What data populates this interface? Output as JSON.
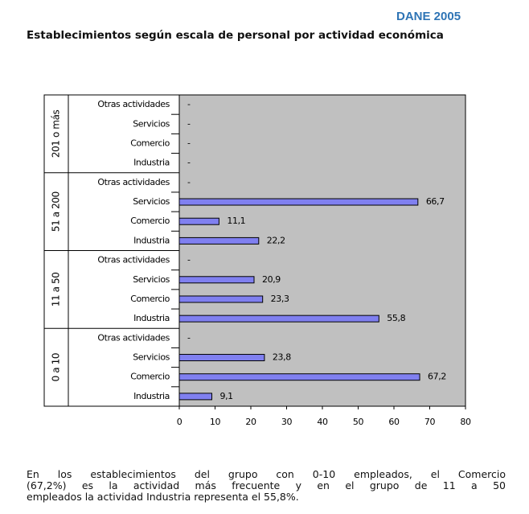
{
  "source": "DANE 2005",
  "chart_data": {
    "type": "bar",
    "orientation": "horizontal",
    "title": "Establecimientos según escala de personal por actividad económica",
    "categories": [
      "Otras actividades",
      "Servicios",
      "Comercio",
      "Industria"
    ],
    "series": [
      {
        "name": "201 o más",
        "color": "#8080f0",
        "values": [
          null,
          null,
          null,
          null
        ],
        "value_labels": [
          "-",
          "-",
          "-",
          "-"
        ]
      },
      {
        "name": "51 a 200",
        "color": "#8080f0",
        "values": [
          null,
          66.7,
          11.1,
          22.2
        ],
        "value_labels": [
          "-",
          "66,7",
          "11,1",
          "22,2"
        ]
      },
      {
        "name": "11 a 50",
        "color": "#8080f0",
        "values": [
          null,
          20.9,
          23.3,
          55.8
        ],
        "value_labels": [
          "-",
          "20,9",
          "23,3",
          "55,8"
        ]
      },
      {
        "name": "0 a 10",
        "color": "#8080f0",
        "values": [
          null,
          23.8,
          67.2,
          9.1
        ],
        "value_labels": [
          "-",
          "23,8",
          "67,2",
          "9,1"
        ]
      }
    ],
    "xlim": [
      0,
      80
    ],
    "xticks": [
      0,
      10,
      20,
      30,
      40,
      50,
      60,
      70,
      80
    ]
  },
  "caption": [
    "En los establecimientos del grupo con 0-10 empleados, el Comercio",
    "(67,2%) es la actividad más frecuente y en el grupo de 11 a 50",
    "empleados la actividad Industria representa el 55,8%."
  ]
}
